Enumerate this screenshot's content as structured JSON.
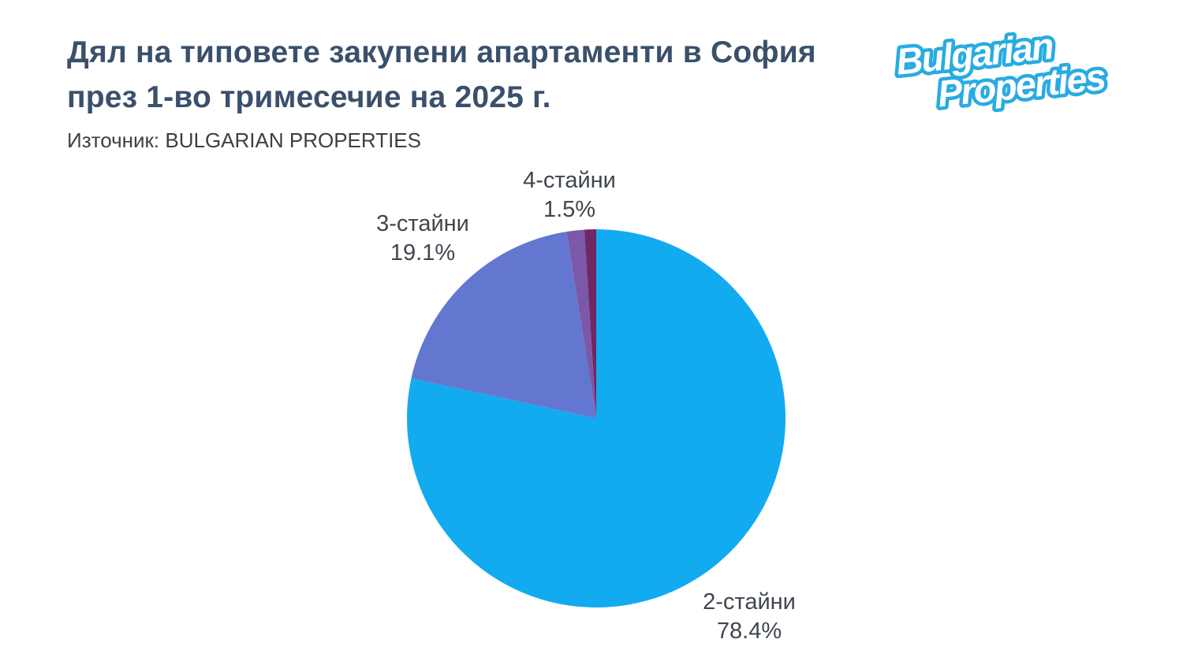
{
  "header": {
    "title_line1": "Дял на типовете закупени апартаменти в София",
    "title_line2": "през 1-во тримесечие на 2025 г.",
    "title_color": "#3A506B",
    "source_text": "Източник: BULGARIAN PROPERTIES"
  },
  "logo": {
    "line1": "Bulgarian",
    "line2": "Properties",
    "color": "#29ABE2"
  },
  "chart_data": {
    "type": "pie",
    "title": "Дял на типовете закупени апартаменти в София през 1-во тримесечие на 2025 г.",
    "source": "Източник: BULGARIAN PROPERTIES",
    "legend_position": "none",
    "start_angle_deg": 0,
    "direction": "clockwise",
    "categories": [
      "2-стайни",
      "3-стайни",
      "4-стайни",
      ""
    ],
    "values": [
      78.4,
      19.1,
      1.5,
      1.0
    ],
    "slices": [
      {
        "key": "2-rooms",
        "label": "2-стайни",
        "pct_label": "78.4%",
        "value": 78.4,
        "color": "#12ABF0",
        "labeled": true
      },
      {
        "key": "3-rooms",
        "label": "3-стайни",
        "pct_label": "19.1%",
        "value": 19.1,
        "color": "#6377D1",
        "labeled": true
      },
      {
        "key": "4-rooms",
        "label": "4-стайни",
        "pct_label": "1.5%",
        "value": 1.5,
        "color": "#7B58A8",
        "labeled": true
      },
      {
        "key": "other",
        "label": "",
        "pct_label": "",
        "value": 1.0,
        "color": "#6F2765",
        "labeled": false
      }
    ]
  }
}
